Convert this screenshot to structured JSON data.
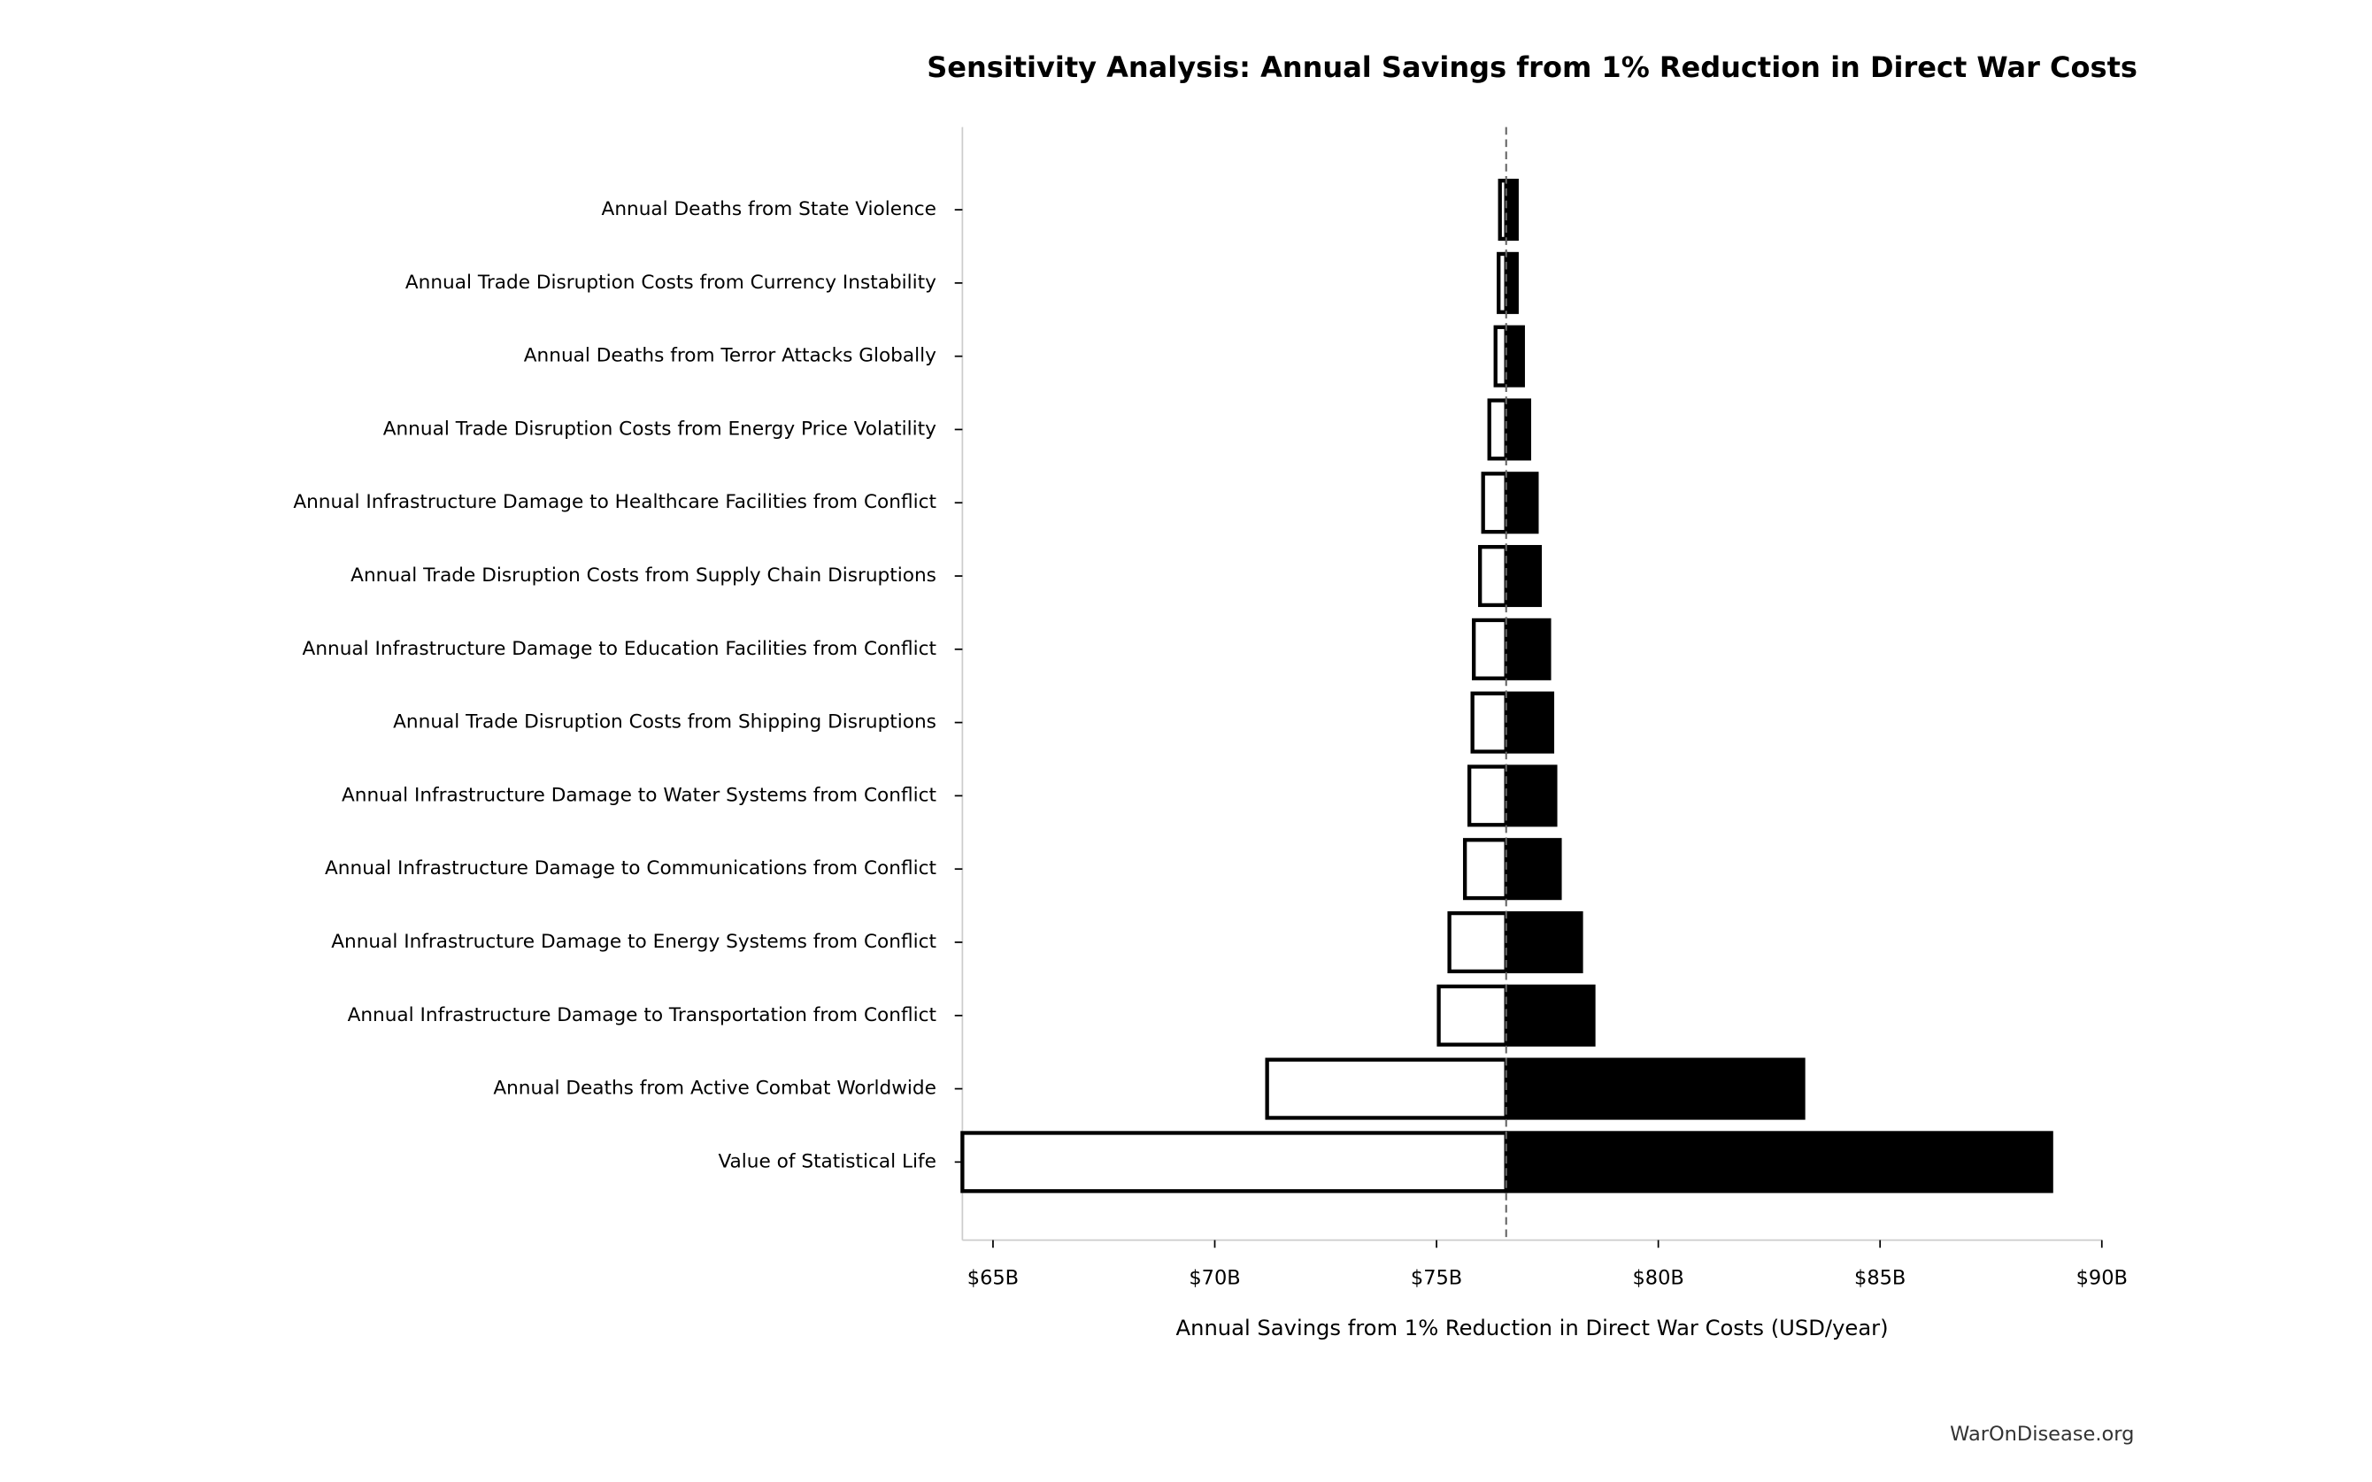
{
  "chart_data": {
    "type": "tornado",
    "title": "Sensitivity Analysis: Annual Savings from 1% Reduction in Direct War Costs",
    "x_label": "Annual Savings from 1% Reduction in Direct War Costs (USD/year)",
    "footer": "WarOnDisease.org",
    "categories": [
      "Annual Deaths from State Violence",
      "Annual Trade Disruption Costs from Currency Instability",
      "Annual Deaths from Terror Attacks Globally",
      "Annual Trade Disruption Costs from Energy Price Volatility",
      "Annual Infrastructure Damage to Healthcare Facilities from Conflict",
      "Annual Trade Disruption Costs from Supply Chain Disruptions",
      "Annual Infrastructure Damage to Education Facilities from Conflict",
      "Annual Trade Disruption Costs from Shipping Disruptions",
      "Annual Infrastructure Damage to Water Systems from Conflict",
      "Annual Infrastructure Damage to Communications from Conflict",
      "Annual Infrastructure Damage to Energy Systems from Conflict",
      "Annual Infrastructure Damage to Transportation from Conflict",
      "Annual Deaths from Active Combat Worldwide",
      "Value of Statistical Life"
    ],
    "baseline": 76.57,
    "series": [
      {
        "color": "#ffffff",
        "values": [
          76.43,
          76.4,
          76.33,
          76.19,
          76.05,
          75.98,
          75.84,
          75.81,
          75.74,
          75.64,
          75.29,
          75.05,
          71.18,
          64.31
        ]
      },
      {
        "color": "#000000",
        "values": [
          76.81,
          76.81,
          76.95,
          77.09,
          77.26,
          77.33,
          77.54,
          77.61,
          77.68,
          77.78,
          78.26,
          78.54,
          83.27,
          88.86
        ]
      }
    ],
    "xlim": [
      64.31,
      90
    ],
    "xticks": [
      {
        "value": 65,
        "label": "$65B"
      },
      {
        "value": 70,
        "label": "$70B"
      },
      {
        "value": 75,
        "label": "$75B"
      },
      {
        "value": 80,
        "label": "$80B"
      },
      {
        "value": 85,
        "label": "$85B"
      },
      {
        "value": 90,
        "label": "$90B"
      }
    ]
  }
}
